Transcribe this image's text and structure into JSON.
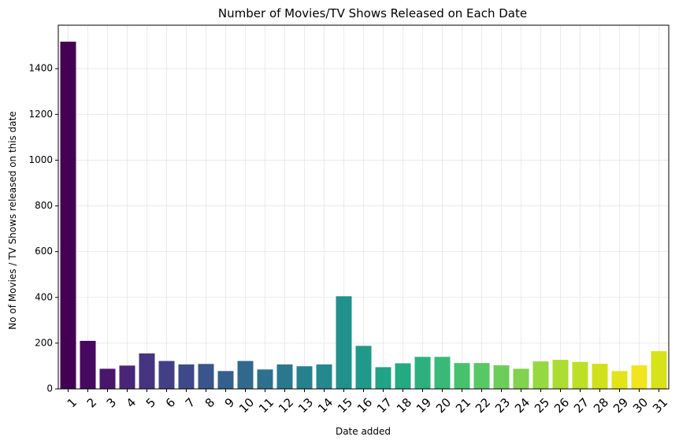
{
  "chart_data": {
    "type": "bar",
    "title": "Number of Movies/TV Shows Released on Each Date",
    "xlabel": "Date added",
    "ylabel": "No of Movies / TV Shows released on this date",
    "categories": [
      "1",
      "2",
      "3",
      "4",
      "5",
      "6",
      "7",
      "8",
      "9",
      "10",
      "11",
      "12",
      "13",
      "14",
      "15",
      "16",
      "17",
      "18",
      "19",
      "20",
      "21",
      "22",
      "23",
      "24",
      "25",
      "26",
      "27",
      "28",
      "29",
      "30",
      "31"
    ],
    "values": [
      1518,
      210,
      88,
      102,
      155,
      122,
      107,
      109,
      78,
      122,
      85,
      107,
      99,
      107,
      405,
      188,
      95,
      112,
      140,
      140,
      113,
      113,
      103,
      88,
      120,
      127,
      118,
      110,
      78,
      103,
      165
    ],
    "yticks": [
      0,
      200,
      400,
      600,
      800,
      1000,
      1200,
      1400
    ],
    "ylim": [
      0,
      1590
    ],
    "grid": true,
    "palette": "viridis",
    "colors": [
      "#440154",
      "#47085f",
      "#49166c",
      "#482677",
      "#463480",
      "#423f85",
      "#3e4989",
      "#3a548c",
      "#355f8d",
      "#31688e",
      "#2d718e",
      "#2a788e",
      "#27808e",
      "#25888d",
      "#21918c",
      "#1f998a",
      "#20a386",
      "#24aa83",
      "#2cb17e",
      "#38b977",
      "#48c16e",
      "#58c765",
      "#6ccd5a",
      "#7fd34e",
      "#95d840",
      "#aadc32",
      "#bddf26",
      "#d0e11c",
      "#e2e418",
      "#f1e51d",
      "#d8e219"
    ]
  }
}
